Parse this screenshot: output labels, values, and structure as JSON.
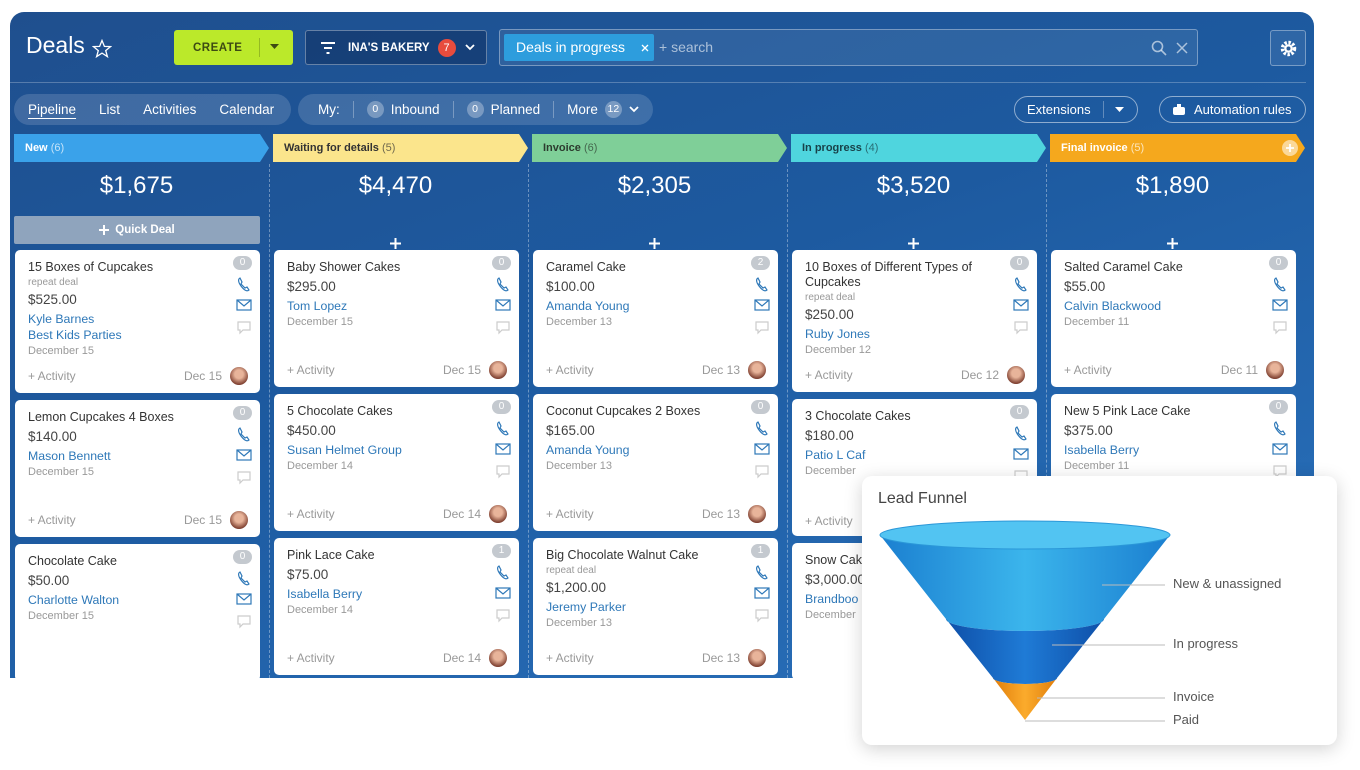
{
  "header": {
    "title": "Deals",
    "create": "CREATE",
    "company": "INA'S BAKERY",
    "company_badge": "7",
    "filter_tag": "Deals in progress",
    "search_placeholder": "+ search"
  },
  "tabs": [
    "Pipeline",
    "List",
    "Activities",
    "Calendar"
  ],
  "my_filter": {
    "label": "My:",
    "items": [
      {
        "count": "0",
        "label": "Inbound"
      },
      {
        "count": "0",
        "label": "Planned"
      }
    ],
    "more": {
      "label": "More",
      "count": "12"
    }
  },
  "toolbar": {
    "extensions": "Extensions",
    "automation": "Automation rules"
  },
  "quick_deal": "Quick Deal",
  "columns": [
    {
      "name": "New",
      "count": "(6)",
      "total": "$1,675",
      "cards": [
        {
          "title": "15 Boxes of Cupcakes",
          "badge": "0",
          "tag": "repeat deal",
          "amount": "$525.00",
          "contacts": [
            "Kyle Barnes",
            "Best Kids Parties"
          ],
          "date": "December 15",
          "activity": "+ Activity",
          "due": "Dec 15"
        },
        {
          "title": "Lemon Cupcakes 4 Boxes",
          "badge": "0",
          "amount": "$140.00",
          "contacts": [
            "Mason Bennett"
          ],
          "date": "December 15",
          "activity": "+ Activity",
          "due": "Dec 15"
        },
        {
          "title": "Chocolate Cake",
          "badge": "0",
          "amount": "$50.00",
          "contacts": [
            "Charlotte Walton"
          ],
          "date": "December 15"
        }
      ]
    },
    {
      "name": "Waiting for details",
      "count": "(5)",
      "total": "$4,470",
      "cards": [
        {
          "title": "Baby Shower Cakes",
          "badge": "0",
          "amount": "$295.00",
          "contacts": [
            "Tom Lopez"
          ],
          "date": "December 15",
          "activity": "+ Activity",
          "due": "Dec 15"
        },
        {
          "title": "5 Chocolate Cakes",
          "badge": "0",
          "amount": "$450.00",
          "contacts": [
            "Susan Helmet Group"
          ],
          "date": "December 14",
          "activity": "+ Activity",
          "due": "Dec 14"
        },
        {
          "title": "Pink Lace Cake",
          "badge": "1",
          "amount": "$75.00",
          "contacts": [
            "Isabella Berry"
          ],
          "date": "December 14",
          "activity": "+ Activity",
          "due": "Dec 14"
        }
      ]
    },
    {
      "name": "Invoice",
      "count": "(6)",
      "total": "$2,305",
      "cards": [
        {
          "title": "Caramel Cake",
          "badge": "2",
          "amount": "$100.00",
          "contacts": [
            "Amanda Young"
          ],
          "date": "December 13",
          "activity": "+ Activity",
          "due": "Dec 13"
        },
        {
          "title": "Coconut Cupcakes 2 Boxes",
          "badge": "0",
          "amount": "$165.00",
          "contacts": [
            "Amanda Young"
          ],
          "date": "December 13",
          "activity": "+ Activity",
          "due": "Dec 13"
        },
        {
          "title": "Big Chocolate Walnut Cake",
          "badge": "1",
          "tag": "repeat deal",
          "amount": "$1,200.00",
          "contacts": [
            "Jeremy Parker"
          ],
          "date": "December 13",
          "activity": "+ Activity",
          "due": "Dec 13"
        }
      ]
    },
    {
      "name": "In progress",
      "count": "(4)",
      "total": "$3,520",
      "cards": [
        {
          "title": "10 Boxes of Different Types of Cupcakes",
          "badge": "0",
          "tag": "repeat deal",
          "amount": "$250.00",
          "contacts": [
            "Ruby Jones"
          ],
          "date": "December 12",
          "activity": "+ Activity",
          "due": "Dec 12"
        },
        {
          "title": "3 Chocolate Cakes",
          "badge": "0",
          "amount": "$180.00",
          "contacts": [
            "Patio L Caf"
          ],
          "date": "December",
          "activity": "+ Activity"
        },
        {
          "title": "Snow Cak",
          "amount": "$3,000.00",
          "contacts": [
            "Brandboo"
          ],
          "date": "December"
        }
      ]
    },
    {
      "name": "Final invoice",
      "count": "(5)",
      "total": "$1,890",
      "cards": [
        {
          "title": "Salted Caramel Cake",
          "badge": "0",
          "amount": "$55.00",
          "contacts": [
            "Calvin Blackwood"
          ],
          "date": "December 11",
          "activity": "+ Activity",
          "due": "Dec 11"
        },
        {
          "title": "New 5 Pink Lace Cake",
          "badge": "0",
          "amount": "$375.00",
          "contacts": [
            "Isabella Berry"
          ],
          "date": "December 11"
        }
      ]
    }
  ],
  "funnel": {
    "title": "Lead Funnel",
    "stages": [
      "New & unassigned",
      "In progress",
      "Invoice",
      "Paid"
    ]
  }
}
